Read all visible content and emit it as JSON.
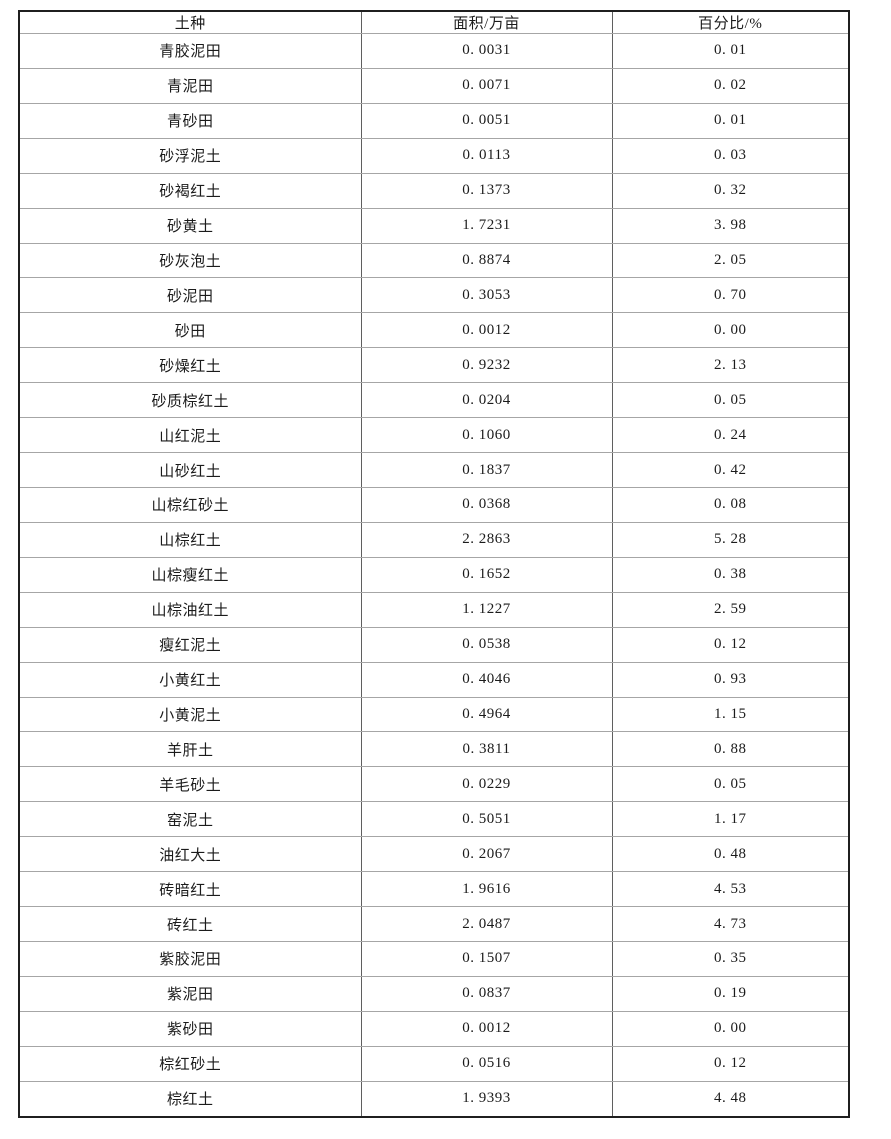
{
  "table": {
    "columns": {
      "soil": "土种",
      "area": "面积/万亩",
      "percent": "百分比/%"
    },
    "rows": [
      [
        "青胶泥田",
        "0. 0031",
        "0. 01"
      ],
      [
        "青泥田",
        "0. 0071",
        "0. 02"
      ],
      [
        "青砂田",
        "0. 0051",
        "0. 01"
      ],
      [
        "砂浮泥土",
        "0. 0113",
        "0. 03"
      ],
      [
        "砂褐红土",
        "0. 1373",
        "0. 32"
      ],
      [
        "砂黄土",
        "1. 7231",
        "3. 98"
      ],
      [
        "砂灰泡土",
        "0. 8874",
        "2. 05"
      ],
      [
        "砂泥田",
        "0. 3053",
        "0. 70"
      ],
      [
        "砂田",
        "0. 0012",
        "0. 00"
      ],
      [
        "砂燥红土",
        "0. 9232",
        "2. 13"
      ],
      [
        "砂质棕红土",
        "0. 0204",
        "0. 05"
      ],
      [
        "山红泥土",
        "0. 1060",
        "0. 24"
      ],
      [
        "山砂红土",
        "0. 1837",
        "0. 42"
      ],
      [
        "山棕红砂土",
        "0. 0368",
        "0. 08"
      ],
      [
        "山棕红土",
        "2. 2863",
        "5. 28"
      ],
      [
        "山棕瘦红土",
        "0. 1652",
        "0. 38"
      ],
      [
        "山棕油红土",
        "1. 1227",
        "2. 59"
      ],
      [
        "瘦红泥土",
        "0. 0538",
        "0. 12"
      ],
      [
        "小黄红土",
        "0. 4046",
        "0. 93"
      ],
      [
        "小黄泥土",
        "0. 4964",
        "1. 15"
      ],
      [
        "羊肝土",
        "0. 3811",
        "0. 88"
      ],
      [
        "羊毛砂土",
        "0. 0229",
        "0. 05"
      ],
      [
        "窑泥土",
        "0. 5051",
        "1. 17"
      ],
      [
        "油红大土",
        "0. 2067",
        "0. 48"
      ],
      [
        "砖暗红土",
        "1. 9616",
        "4. 53"
      ],
      [
        "砖红土",
        "2. 0487",
        "4. 73"
      ],
      [
        "紫胶泥田",
        "0. 1507",
        "0. 35"
      ],
      [
        "紫泥田",
        "0. 0837",
        "0. 19"
      ],
      [
        "紫砂田",
        "0. 0012",
        "0. 00"
      ],
      [
        "棕红砂土",
        "0. 0516",
        "0. 12"
      ],
      [
        "棕红土",
        "1. 9393",
        "4. 48"
      ]
    ]
  },
  "chart_data": {
    "type": "table",
    "title": "",
    "columns": [
      "土种",
      "面积/万亩",
      "百分比/%"
    ],
    "soil_types": [
      "青胶泥田",
      "青泥田",
      "青砂田",
      "砂浮泥土",
      "砂褐红土",
      "砂黄土",
      "砂灰泡土",
      "砂泥田",
      "砂田",
      "砂燥红土",
      "砂质棕红土",
      "山红泥土",
      "山砂红土",
      "山棕红砂土",
      "山棕红土",
      "山棕瘦红土",
      "山棕油红土",
      "瘦红泥土",
      "小黄红土",
      "小黄泥土",
      "羊肝土",
      "羊毛砂土",
      "窑泥土",
      "油红大土",
      "砖暗红土",
      "砖红土",
      "紫胶泥田",
      "紫泥田",
      "紫砂田",
      "棕红砂土",
      "棕红土"
    ],
    "area_wan_mu": [
      0.0031,
      0.0071,
      0.0051,
      0.0113,
      0.1373,
      1.7231,
      0.8874,
      0.3053,
      0.0012,
      0.9232,
      0.0204,
      0.106,
      0.1837,
      0.0368,
      2.2863,
      0.1652,
      1.1227,
      0.0538,
      0.4046,
      0.4964,
      0.3811,
      0.0229,
      0.5051,
      0.2067,
      1.9616,
      2.0487,
      0.1507,
      0.0837,
      0.0012,
      0.0516,
      1.9393
    ],
    "percent": [
      0.01,
      0.02,
      0.01,
      0.03,
      0.32,
      3.98,
      2.05,
      0.7,
      0.0,
      2.13,
      0.05,
      0.24,
      0.42,
      0.08,
      5.28,
      0.38,
      2.59,
      0.12,
      0.93,
      1.15,
      0.88,
      0.05,
      1.17,
      0.48,
      4.53,
      4.73,
      0.35,
      0.19,
      0.0,
      0.12,
      4.48
    ]
  },
  "colors": {
    "background": "#ffffff",
    "outer_border": "#1f1f1f",
    "vertical_grid": "#5f5f5f",
    "horizontal_grid": "#a6a6a6",
    "text": "#1b1b1b"
  }
}
